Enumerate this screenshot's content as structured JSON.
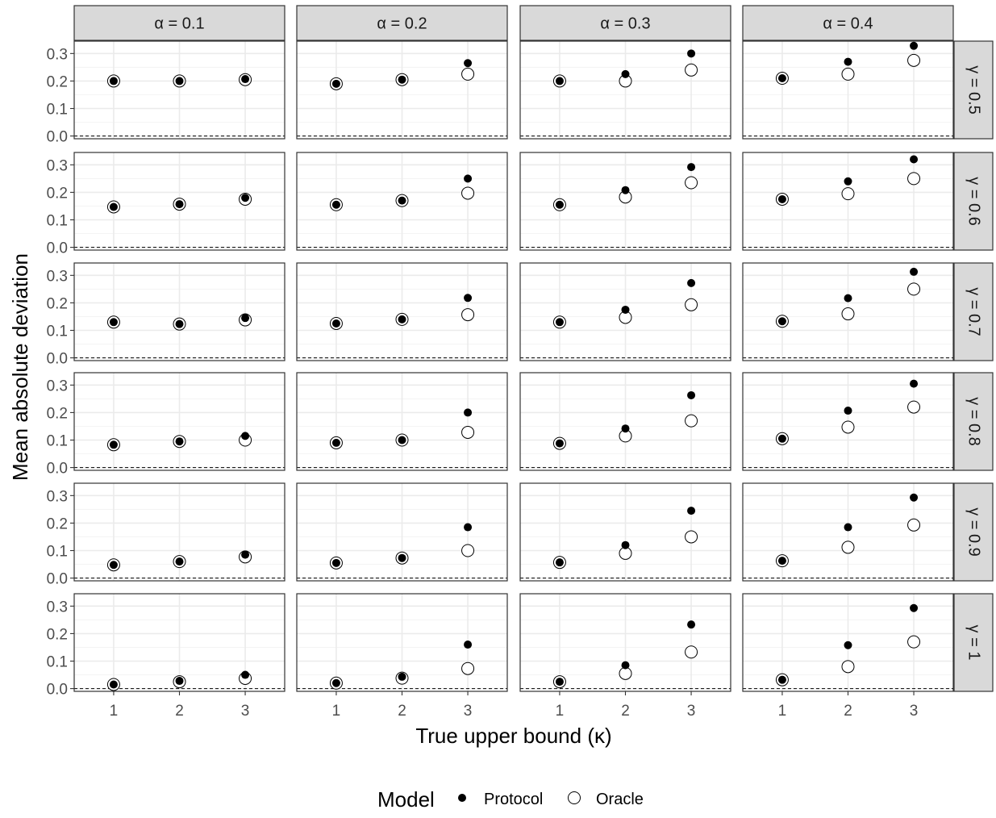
{
  "chart_data": {
    "type": "scatter",
    "xlabel": "True upper bound (κ)",
    "ylabel": "Mean absolute deviation",
    "x": [
      1,
      2,
      3
    ],
    "x_tick_labels": [
      "1",
      "2",
      "3"
    ],
    "ylim": [
      -0.01,
      0.345
    ],
    "y_ticks": [
      0.0,
      0.1,
      0.2,
      0.3
    ],
    "y_tick_labels": [
      "0.0",
      "0.1",
      "0.2",
      "0.3"
    ],
    "reference_line_y": 0,
    "grid": true,
    "facet_columns": [
      "α = 0.1",
      "α = 0.2",
      "α = 0.3",
      "α = 0.4"
    ],
    "facet_rows": [
      "γ = 0.5",
      "γ = 0.6",
      "γ = 0.7",
      "γ = 0.8",
      "γ = 0.9",
      "γ = 1"
    ],
    "legend": {
      "title": "Model",
      "position": "bottom",
      "entries": [
        {
          "name": "Protocol",
          "marker": "filled-circle"
        },
        {
          "name": "Oracle",
          "marker": "open-circle"
        }
      ]
    },
    "panels": [
      {
        "row": 0,
        "col": 0,
        "protocol": [
          0.2,
          0.2,
          0.207
        ],
        "oracle": [
          0.2,
          0.2,
          0.205
        ]
      },
      {
        "row": 0,
        "col": 1,
        "protocol": [
          0.19,
          0.205,
          0.265
        ],
        "oracle": [
          0.19,
          0.205,
          0.225
        ]
      },
      {
        "row": 0,
        "col": 2,
        "protocol": [
          0.2,
          0.225,
          0.3
        ],
        "oracle": [
          0.2,
          0.2,
          0.24
        ]
      },
      {
        "row": 0,
        "col": 3,
        "protocol": [
          0.21,
          0.27,
          0.328
        ],
        "oracle": [
          0.21,
          0.225,
          0.275
        ]
      },
      {
        "row": 1,
        "col": 0,
        "protocol": [
          0.147,
          0.157,
          0.18
        ],
        "oracle": [
          0.147,
          0.157,
          0.175
        ]
      },
      {
        "row": 1,
        "col": 1,
        "protocol": [
          0.155,
          0.17,
          0.25
        ],
        "oracle": [
          0.155,
          0.17,
          0.197
        ]
      },
      {
        "row": 1,
        "col": 2,
        "protocol": [
          0.155,
          0.208,
          0.292
        ],
        "oracle": [
          0.155,
          0.183,
          0.235
        ]
      },
      {
        "row": 1,
        "col": 3,
        "protocol": [
          0.175,
          0.24,
          0.32
        ],
        "oracle": [
          0.175,
          0.195,
          0.25
        ]
      },
      {
        "row": 2,
        "col": 0,
        "protocol": [
          0.13,
          0.123,
          0.145
        ],
        "oracle": [
          0.13,
          0.123,
          0.138
        ]
      },
      {
        "row": 2,
        "col": 1,
        "protocol": [
          0.125,
          0.14,
          0.218
        ],
        "oracle": [
          0.125,
          0.14,
          0.157
        ]
      },
      {
        "row": 2,
        "col": 2,
        "protocol": [
          0.13,
          0.175,
          0.272
        ],
        "oracle": [
          0.13,
          0.147,
          0.193
        ]
      },
      {
        "row": 2,
        "col": 3,
        "protocol": [
          0.133,
          0.217,
          0.313
        ],
        "oracle": [
          0.133,
          0.16,
          0.25
        ]
      },
      {
        "row": 3,
        "col": 0,
        "protocol": [
          0.083,
          0.095,
          0.115
        ],
        "oracle": [
          0.083,
          0.095,
          0.1
        ]
      },
      {
        "row": 3,
        "col": 1,
        "protocol": [
          0.09,
          0.1,
          0.2
        ],
        "oracle": [
          0.09,
          0.1,
          0.128
        ]
      },
      {
        "row": 3,
        "col": 2,
        "protocol": [
          0.088,
          0.142,
          0.263
        ],
        "oracle": [
          0.088,
          0.115,
          0.17
        ]
      },
      {
        "row": 3,
        "col": 3,
        "protocol": [
          0.105,
          0.207,
          0.305
        ],
        "oracle": [
          0.105,
          0.147,
          0.22
        ]
      },
      {
        "row": 4,
        "col": 0,
        "protocol": [
          0.048,
          0.06,
          0.085
        ],
        "oracle": [
          0.048,
          0.06,
          0.077
        ]
      },
      {
        "row": 4,
        "col": 1,
        "protocol": [
          0.055,
          0.073,
          0.185
        ],
        "oracle": [
          0.055,
          0.073,
          0.1
        ]
      },
      {
        "row": 4,
        "col": 2,
        "protocol": [
          0.057,
          0.12,
          0.245
        ],
        "oracle": [
          0.057,
          0.09,
          0.15
        ]
      },
      {
        "row": 4,
        "col": 3,
        "protocol": [
          0.063,
          0.185,
          0.293
        ],
        "oracle": [
          0.063,
          0.112,
          0.193
        ]
      },
      {
        "row": 5,
        "col": 0,
        "protocol": [
          0.015,
          0.028,
          0.05
        ],
        "oracle": [
          0.015,
          0.025,
          0.037
        ]
      },
      {
        "row": 5,
        "col": 1,
        "protocol": [
          0.02,
          0.043,
          0.16
        ],
        "oracle": [
          0.02,
          0.038,
          0.073
        ]
      },
      {
        "row": 5,
        "col": 2,
        "protocol": [
          0.025,
          0.085,
          0.233
        ],
        "oracle": [
          0.025,
          0.055,
          0.133
        ]
      },
      {
        "row": 5,
        "col": 3,
        "protocol": [
          0.032,
          0.158,
          0.293
        ],
        "oracle": [
          0.032,
          0.08,
          0.17
        ]
      }
    ]
  }
}
